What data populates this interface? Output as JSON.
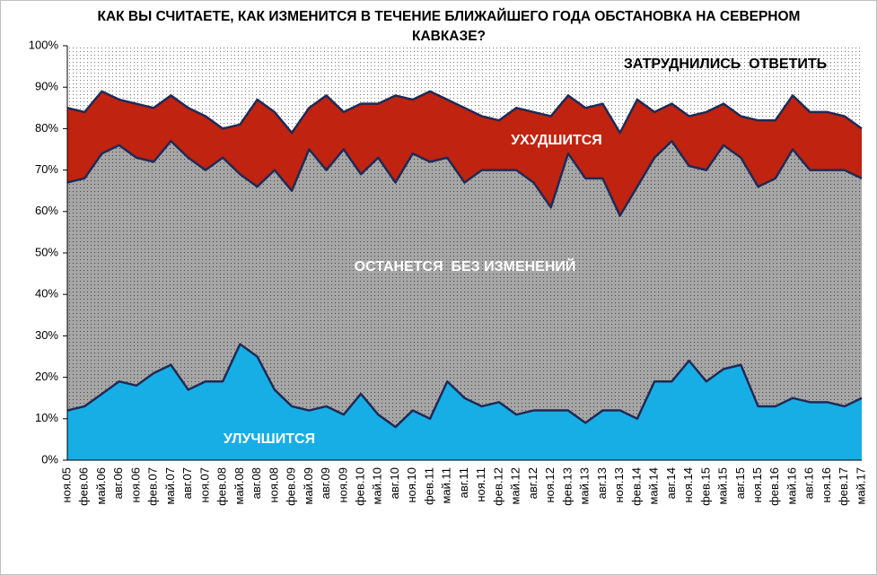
{
  "chart_data": {
    "type": "stacked-area",
    "title": "КАК ВЫ СЧИТАЕТЕ, КАК ИЗМЕНИТСЯ В ТЕЧЕНИЕ БЛИЖАЙШЕГО ГОДА ОБСТАНОВКА НА СЕВЕРНОМ КАВКАЗЕ?",
    "categories": [
      "ноя.05",
      "фев.06",
      "май.06",
      "авг.06",
      "ноя.06",
      "фев.07",
      "май.07",
      "авг.07",
      "ноя.07",
      "фев.08",
      "май.08",
      "авг.08",
      "ноя.08",
      "фев.09",
      "май.09",
      "авг.09",
      "ноя.09",
      "фев.10",
      "май.10",
      "авг.10",
      "ноя.10",
      "фев.11",
      "май.11",
      "авг.11",
      "ноя.11",
      "фев.12",
      "май.12",
      "авг.12",
      "ноя.12",
      "фев.13",
      "май.13",
      "авг.13",
      "ноя.13",
      "фев.14",
      "май.14",
      "авг.14",
      "ноя.14",
      "фев.15",
      "май.15",
      "авг.15",
      "ноя.15",
      "фев.16",
      "май.16",
      "авг.16",
      "ноя.16",
      "фев.17",
      "май.17"
    ],
    "series": [
      {
        "name": "УЛУЧШИТСЯ",
        "color": "#17aee6",
        "values": [
          12,
          13,
          16,
          19,
          18,
          21,
          23,
          17,
          19,
          19,
          28,
          25,
          17,
          13,
          12,
          13,
          11,
          16,
          11,
          8,
          12,
          10,
          19,
          15,
          13,
          14,
          11,
          12,
          12,
          12,
          9,
          12,
          12,
          10,
          19,
          19,
          24,
          19,
          22,
          23,
          13,
          13,
          15,
          14,
          14,
          13,
          15
        ]
      },
      {
        "name": "ОСТАНЕТСЯ  БЕЗ ИЗМЕНЕНИЙ",
        "color": "#a6a6a6",
        "values": [
          55,
          55,
          58,
          57,
          55,
          51,
          54,
          56,
          51,
          54,
          41,
          41,
          53,
          52,
          63,
          57,
          64,
          53,
          62,
          59,
          62,
          62,
          54,
          52,
          57,
          56,
          59,
          55,
          49,
          62,
          59,
          56,
          47,
          56,
          54,
          58,
          47,
          51,
          54,
          50,
          53,
          55,
          60,
          56,
          56,
          57,
          53
        ]
      },
      {
        "name": "УХУДШИТСЯ",
        "color": "#c0230f",
        "values": [
          18,
          16,
          15,
          11,
          13,
          13,
          11,
          12,
          13,
          7,
          12,
          21,
          14,
          14,
          10,
          18,
          9,
          17,
          13,
          21,
          13,
          17,
          14,
          18,
          13,
          12,
          15,
          17,
          22,
          14,
          17,
          18,
          20,
          21,
          11,
          9,
          12,
          14,
          10,
          10,
          16,
          14,
          13,
          14,
          14,
          13,
          12
        ]
      },
      {
        "name": "ЗАТРУДНИЛИСЬ  ОТВЕТИТЬ",
        "color": "#ffffff",
        "values": [
          15,
          16,
          11,
          13,
          14,
          15,
          12,
          15,
          17,
          20,
          19,
          13,
          16,
          21,
          15,
          12,
          16,
          14,
          14,
          12,
          13,
          11,
          13,
          15,
          17,
          18,
          15,
          16,
          17,
          12,
          15,
          14,
          21,
          13,
          16,
          14,
          17,
          16,
          14,
          17,
          18,
          18,
          12,
          16,
          16,
          17,
          20
        ]
      }
    ],
    "ylim": [
      0,
      100
    ],
    "yticks": [
      {
        "value": 0,
        "label": "0%"
      },
      {
        "value": 10,
        "label": "10%"
      },
      {
        "value": 20,
        "label": "20%"
      },
      {
        "value": 30,
        "label": "30%"
      },
      {
        "value": 40,
        "label": "40%"
      },
      {
        "value": 50,
        "label": "50%"
      },
      {
        "value": 60,
        "label": "60%"
      },
      {
        "value": 70,
        "label": "70%"
      },
      {
        "value": 80,
        "label": "80%"
      },
      {
        "value": 90,
        "label": "90%"
      },
      {
        "value": 100,
        "label": "100%"
      }
    ],
    "outline_color": "#1f2a55"
  }
}
